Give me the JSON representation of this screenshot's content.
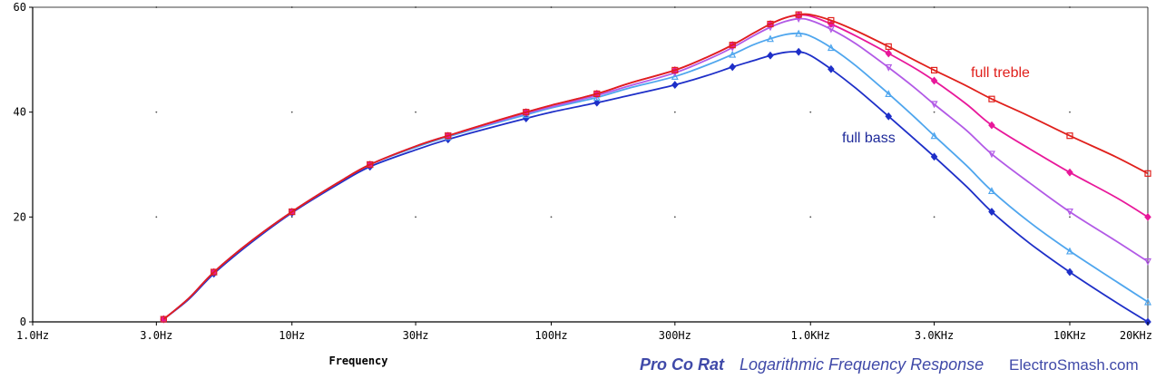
{
  "chart_data": {
    "type": "line",
    "x_scale": "log",
    "xlabel": "Frequency",
    "ylabel": "",
    "xlim": [
      1,
      20000
    ],
    "ylim": [
      0,
      60
    ],
    "x_ticks": [
      {
        "value": 1,
        "label": "1.0Hz"
      },
      {
        "value": 3,
        "label": "3.0Hz"
      },
      {
        "value": 10,
        "label": "10Hz"
      },
      {
        "value": 30,
        "label": "30Hz"
      },
      {
        "value": 100,
        "label": "100Hz"
      },
      {
        "value": 300,
        "label": "300Hz"
      },
      {
        "value": 1000,
        "label": "1.0KHz"
      },
      {
        "value": 3000,
        "label": "3.0KHz"
      },
      {
        "value": 10000,
        "label": "10KHz"
      },
      {
        "value": 20000,
        "label": "20KHz"
      }
    ],
    "y_ticks": [
      {
        "value": 0,
        "label": "0"
      },
      {
        "value": 20,
        "label": "20"
      },
      {
        "value": 40,
        "label": "40"
      },
      {
        "value": 60,
        "label": "60"
      }
    ],
    "grid": "dotted",
    "series": [
      {
        "name": "full treble",
        "color": "#e0201c",
        "marker": "square",
        "x": [
          3.2,
          4,
          5,
          7,
          10,
          15,
          20,
          30,
          40,
          60,
          80,
          100,
          150,
          200,
          300,
          400,
          500,
          600,
          700,
          800,
          900,
          1000,
          1200,
          1500,
          2000,
          2500,
          3000,
          4000,
          5000,
          7000,
          10000,
          15000,
          20000
        ],
        "y": [
          0.5,
          4.5,
          9.5,
          15.5,
          21.0,
          26.5,
          30.0,
          33.5,
          35.5,
          38.2,
          40.0,
          41.3,
          43.5,
          45.5,
          48.0,
          50.5,
          52.8,
          55.0,
          56.8,
          58.0,
          58.6,
          58.6,
          57.5,
          55.5,
          52.5,
          50.0,
          48.0,
          45.0,
          42.5,
          39.2,
          35.5,
          31.5,
          28.3
        ]
      },
      {
        "name": "",
        "color": "#e8189a",
        "marker": "diamond",
        "x": [
          3.2,
          4,
          5,
          7,
          10,
          15,
          20,
          30,
          40,
          60,
          80,
          100,
          150,
          200,
          300,
          400,
          500,
          600,
          700,
          800,
          900,
          1000,
          1200,
          1500,
          2000,
          2500,
          3000,
          4000,
          5000,
          7000,
          10000,
          15000,
          20000
        ],
        "y": [
          0.5,
          4.5,
          9.5,
          15.5,
          21.0,
          26.5,
          30.0,
          33.5,
          35.5,
          38.2,
          40.0,
          41.3,
          43.5,
          45.5,
          48.0,
          50.5,
          52.8,
          55.0,
          56.8,
          58.0,
          58.5,
          58.3,
          56.8,
          54.5,
          51.2,
          48.5,
          46.0,
          41.5,
          37.5,
          33.0,
          28.5,
          23.8,
          20.0
        ]
      },
      {
        "name": "",
        "color": "#b25ae6",
        "marker": "triangle-down",
        "x": [
          3.2,
          4,
          5,
          7,
          10,
          15,
          20,
          30,
          40,
          60,
          80,
          100,
          150,
          200,
          300,
          400,
          500,
          600,
          700,
          800,
          900,
          1000,
          1200,
          1500,
          2000,
          2500,
          3000,
          4000,
          5000,
          7000,
          10000,
          15000,
          20000
        ],
        "y": [
          0.5,
          4.5,
          9.5,
          15.5,
          21.0,
          26.5,
          30.0,
          33.5,
          35.5,
          38.0,
          39.8,
          41.0,
          43.2,
          45.0,
          47.5,
          50.0,
          52.3,
          54.5,
          56.2,
          57.3,
          57.8,
          57.5,
          55.8,
          53.0,
          48.5,
          44.8,
          41.5,
          36.5,
          32.0,
          26.5,
          21.0,
          15.5,
          11.5
        ]
      },
      {
        "name": "",
        "color": "#4fa6ee",
        "marker": "triangle-up",
        "x": [
          3.2,
          4,
          5,
          7,
          10,
          15,
          20,
          30,
          40,
          60,
          80,
          100,
          150,
          200,
          300,
          400,
          500,
          600,
          700,
          800,
          900,
          1000,
          1200,
          1500,
          2000,
          2500,
          3000,
          4000,
          5000,
          7000,
          10000,
          15000,
          20000
        ],
        "y": [
          0.5,
          4.5,
          9.5,
          15.5,
          21.0,
          26.5,
          30.0,
          33.3,
          35.3,
          37.8,
          39.5,
          40.8,
          42.8,
          44.6,
          46.8,
          49.0,
          51.0,
          52.8,
          54.0,
          54.8,
          55.0,
          54.5,
          52.3,
          48.8,
          43.5,
          39.2,
          35.5,
          29.8,
          25.0,
          19.0,
          13.5,
          7.8,
          3.8
        ]
      },
      {
        "name": "full bass",
        "color": "#1e2fc8",
        "marker": "diamond",
        "x": [
          3.2,
          4,
          5,
          7,
          10,
          15,
          20,
          30,
          40,
          60,
          80,
          100,
          150,
          200,
          300,
          400,
          500,
          600,
          700,
          800,
          900,
          1000,
          1200,
          1500,
          2000,
          2500,
          3000,
          4000,
          5000,
          7000,
          10000,
          15000,
          20000
        ],
        "y": [
          0.5,
          4.3,
          9.2,
          15.2,
          20.8,
          26.2,
          29.6,
          32.8,
          34.8,
          37.2,
          38.8,
          40.0,
          41.8,
          43.2,
          45.2,
          47.0,
          48.6,
          49.8,
          50.8,
          51.4,
          51.5,
          50.8,
          48.2,
          44.5,
          39.2,
          35.0,
          31.5,
          25.8,
          21.0,
          15.0,
          9.5,
          3.8,
          0.0
        ]
      }
    ]
  },
  "annotations": {
    "treble": "full treble",
    "bass": "full bass"
  },
  "caption": {
    "title": "Pro Co Rat",
    "subtitle": "Logarithmic Frequency Response",
    "site": "ElectroSmash.com"
  }
}
